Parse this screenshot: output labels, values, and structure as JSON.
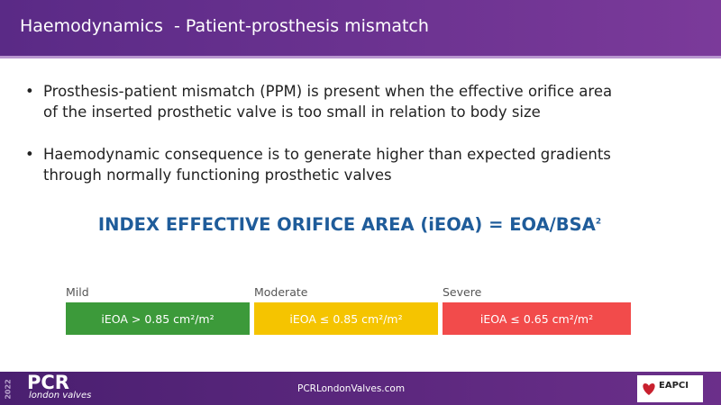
{
  "header": {
    "title": "Haemodynamics  - Patient-prosthesis mismatch"
  },
  "bullets": [
    "Prosthesis-patient mismatch (PPM) is present when the effective orifice area of the inserted prosthetic valve is too small in relation to body size",
    "Haemodynamic consequence is to generate higher than expected gradients through normally functioning prosthetic valves"
  ],
  "formula": {
    "text": "INDEX EFFECTIVE ORIFICE AREA (iEOA) = EOA/BSA",
    "superscript": "2"
  },
  "grades": [
    {
      "label": "Mild",
      "criterion": "iEOA > 0.85 cm²/m²"
    },
    {
      "label": "Moderate",
      "criterion": "iEOA ≤ 0.85 cm²/m²"
    },
    {
      "label": "Severe",
      "criterion": "iEOA ≤ 0.65 cm²/m²"
    }
  ],
  "footer": {
    "year": "2022",
    "brand": "PCR",
    "brand_sub": "london valves",
    "url": "PCRLondonValves.com",
    "partner": "EAPCI"
  }
}
